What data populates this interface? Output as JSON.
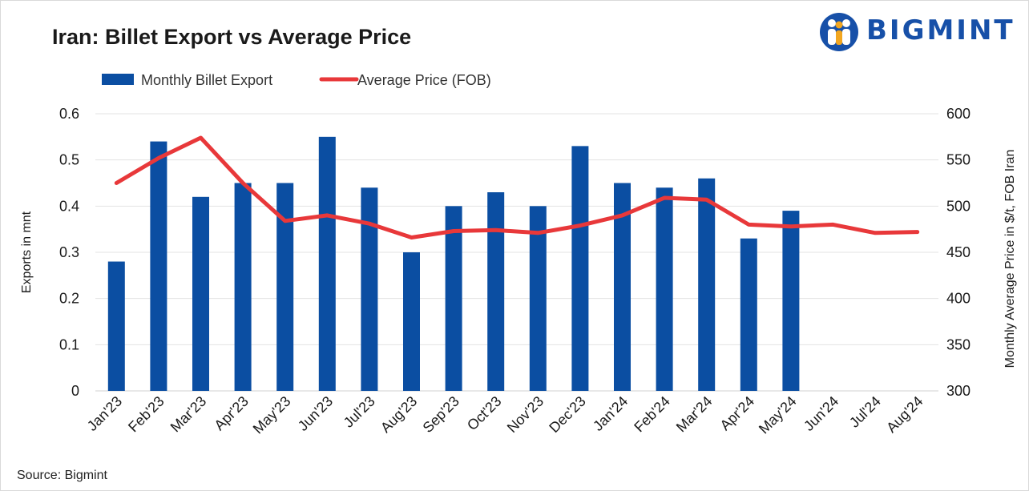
{
  "title": "Iran: Billet Export vs Average Price",
  "source": "Source: Bigmint",
  "logo": {
    "text": "BIGMINT",
    "icon": "people-icon",
    "color": "#1750a8"
  },
  "chart_data": {
    "type": "bar+line",
    "categories": [
      "Jan'23",
      "Feb'23",
      "Mar'23",
      "Apr'23",
      "May'23",
      "Jun'23",
      "Jul'23",
      "Aug'23",
      "Sep'23",
      "Oct'23",
      "Nov'23",
      "Dec'23",
      "Jan'24",
      "Feb'24",
      "Mar'24",
      "Apr'24",
      "May'24",
      "Jun'24",
      "Jul'24",
      "Aug'24"
    ],
    "series": [
      {
        "name": "Monthly Billet Export",
        "type": "bar",
        "axis": "left",
        "color": "#0b4ea2",
        "values": [
          0.28,
          0.54,
          0.42,
          0.45,
          0.45,
          0.55,
          0.44,
          0.3,
          0.4,
          0.43,
          0.4,
          0.53,
          0.45,
          0.44,
          0.46,
          0.33,
          0.39,
          null,
          null,
          null
        ]
      },
      {
        "name": "Average Price (FOB)",
        "type": "line",
        "axis": "right",
        "color": "#e8383a",
        "values": [
          525,
          552,
          574,
          525,
          484,
          490,
          481,
          466,
          473,
          474,
          471,
          479,
          490,
          509,
          507,
          480,
          478,
          480,
          471,
          472
        ]
      }
    ],
    "ylabel_left": "Exports in mnt",
    "ylabel_right": "Monthly Average Price in $/t, FOB Iran",
    "ylim_left": [
      0,
      0.6
    ],
    "ylim_right": [
      300,
      600
    ],
    "yticks_left": [
      "0",
      "0.1",
      "0.2",
      "0.3",
      "0.4",
      "0.5",
      "0.6"
    ],
    "yticks_right": [
      "300",
      "350",
      "400",
      "450",
      "500",
      "550",
      "600"
    ],
    "grid": true,
    "legend": "top-left"
  }
}
